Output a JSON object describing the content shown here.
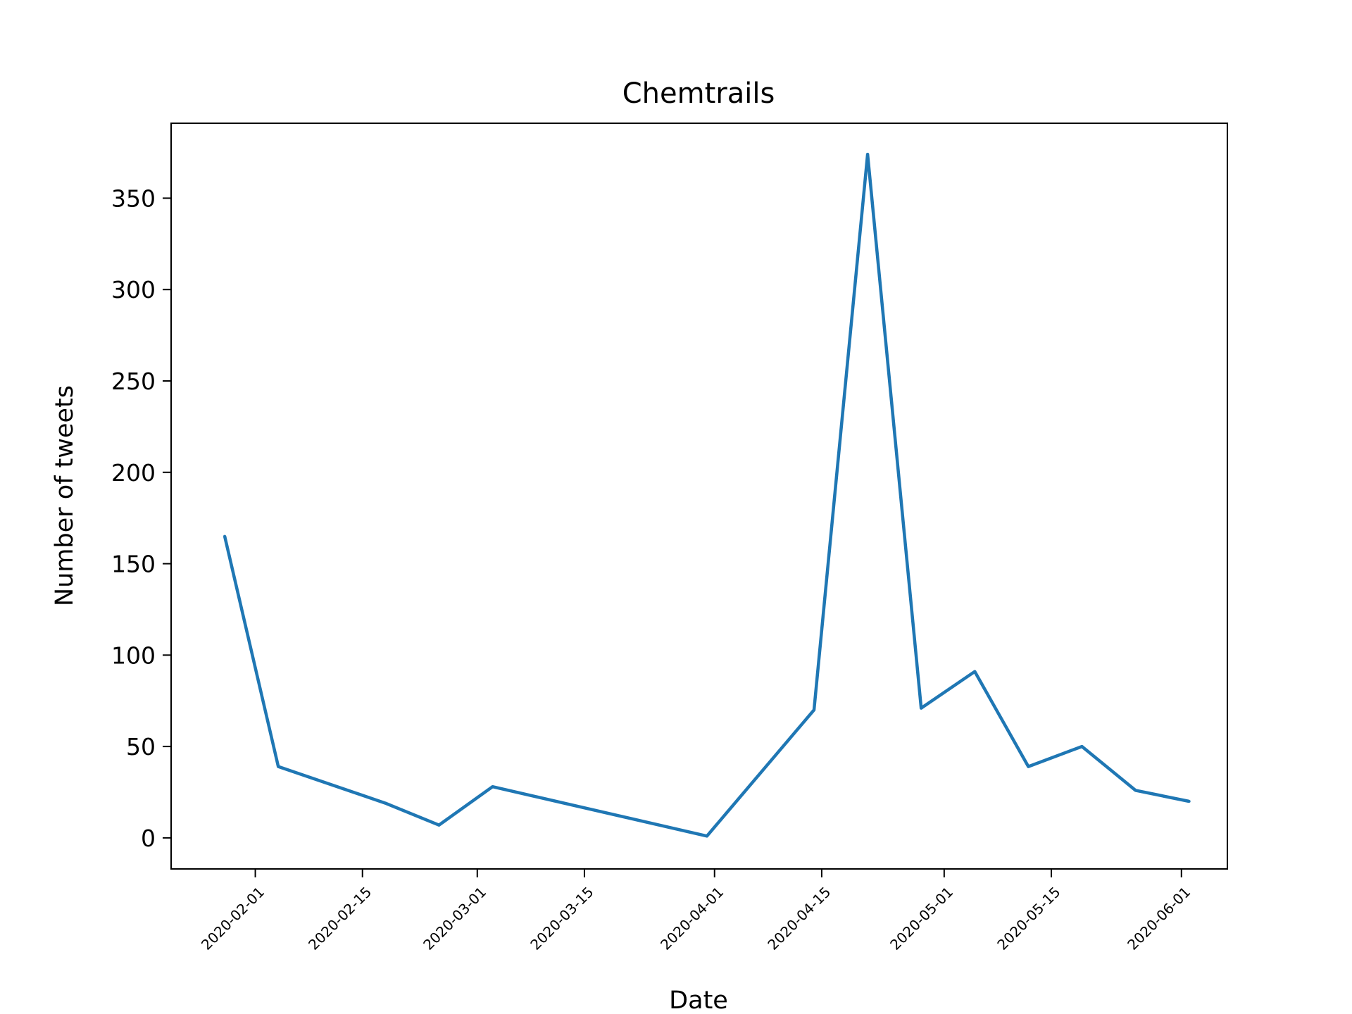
{
  "chart_data": {
    "type": "line",
    "title": "Chemtrails",
    "xlabel": "Date",
    "ylabel": "Number of tweets",
    "ylim": [
      -17,
      391
    ],
    "xlim": [
      "2020-01-21",
      "2020-06-07"
    ],
    "grid": false,
    "line_color": "#1f77b4",
    "yticks": [
      0,
      50,
      100,
      150,
      200,
      250,
      300,
      350
    ],
    "xticks": [
      "2020-02-01",
      "2020-02-15",
      "2020-03-01",
      "2020-03-15",
      "2020-04-01",
      "2020-04-15",
      "2020-05-01",
      "2020-05-15",
      "2020-06-01"
    ],
    "series": [
      {
        "x": [
          "2020-01-28",
          "2020-02-04",
          "2020-02-18",
          "2020-02-25",
          "2020-03-03",
          "2020-03-31",
          "2020-04-14",
          "2020-04-21",
          "2020-04-28",
          "2020-05-05",
          "2020-05-12",
          "2020-05-19",
          "2020-05-26",
          "2020-06-02"
        ],
        "values": [
          165,
          39,
          19,
          7,
          28,
          1,
          70,
          374,
          71,
          91,
          39,
          50,
          26,
          20
        ]
      }
    ]
  }
}
